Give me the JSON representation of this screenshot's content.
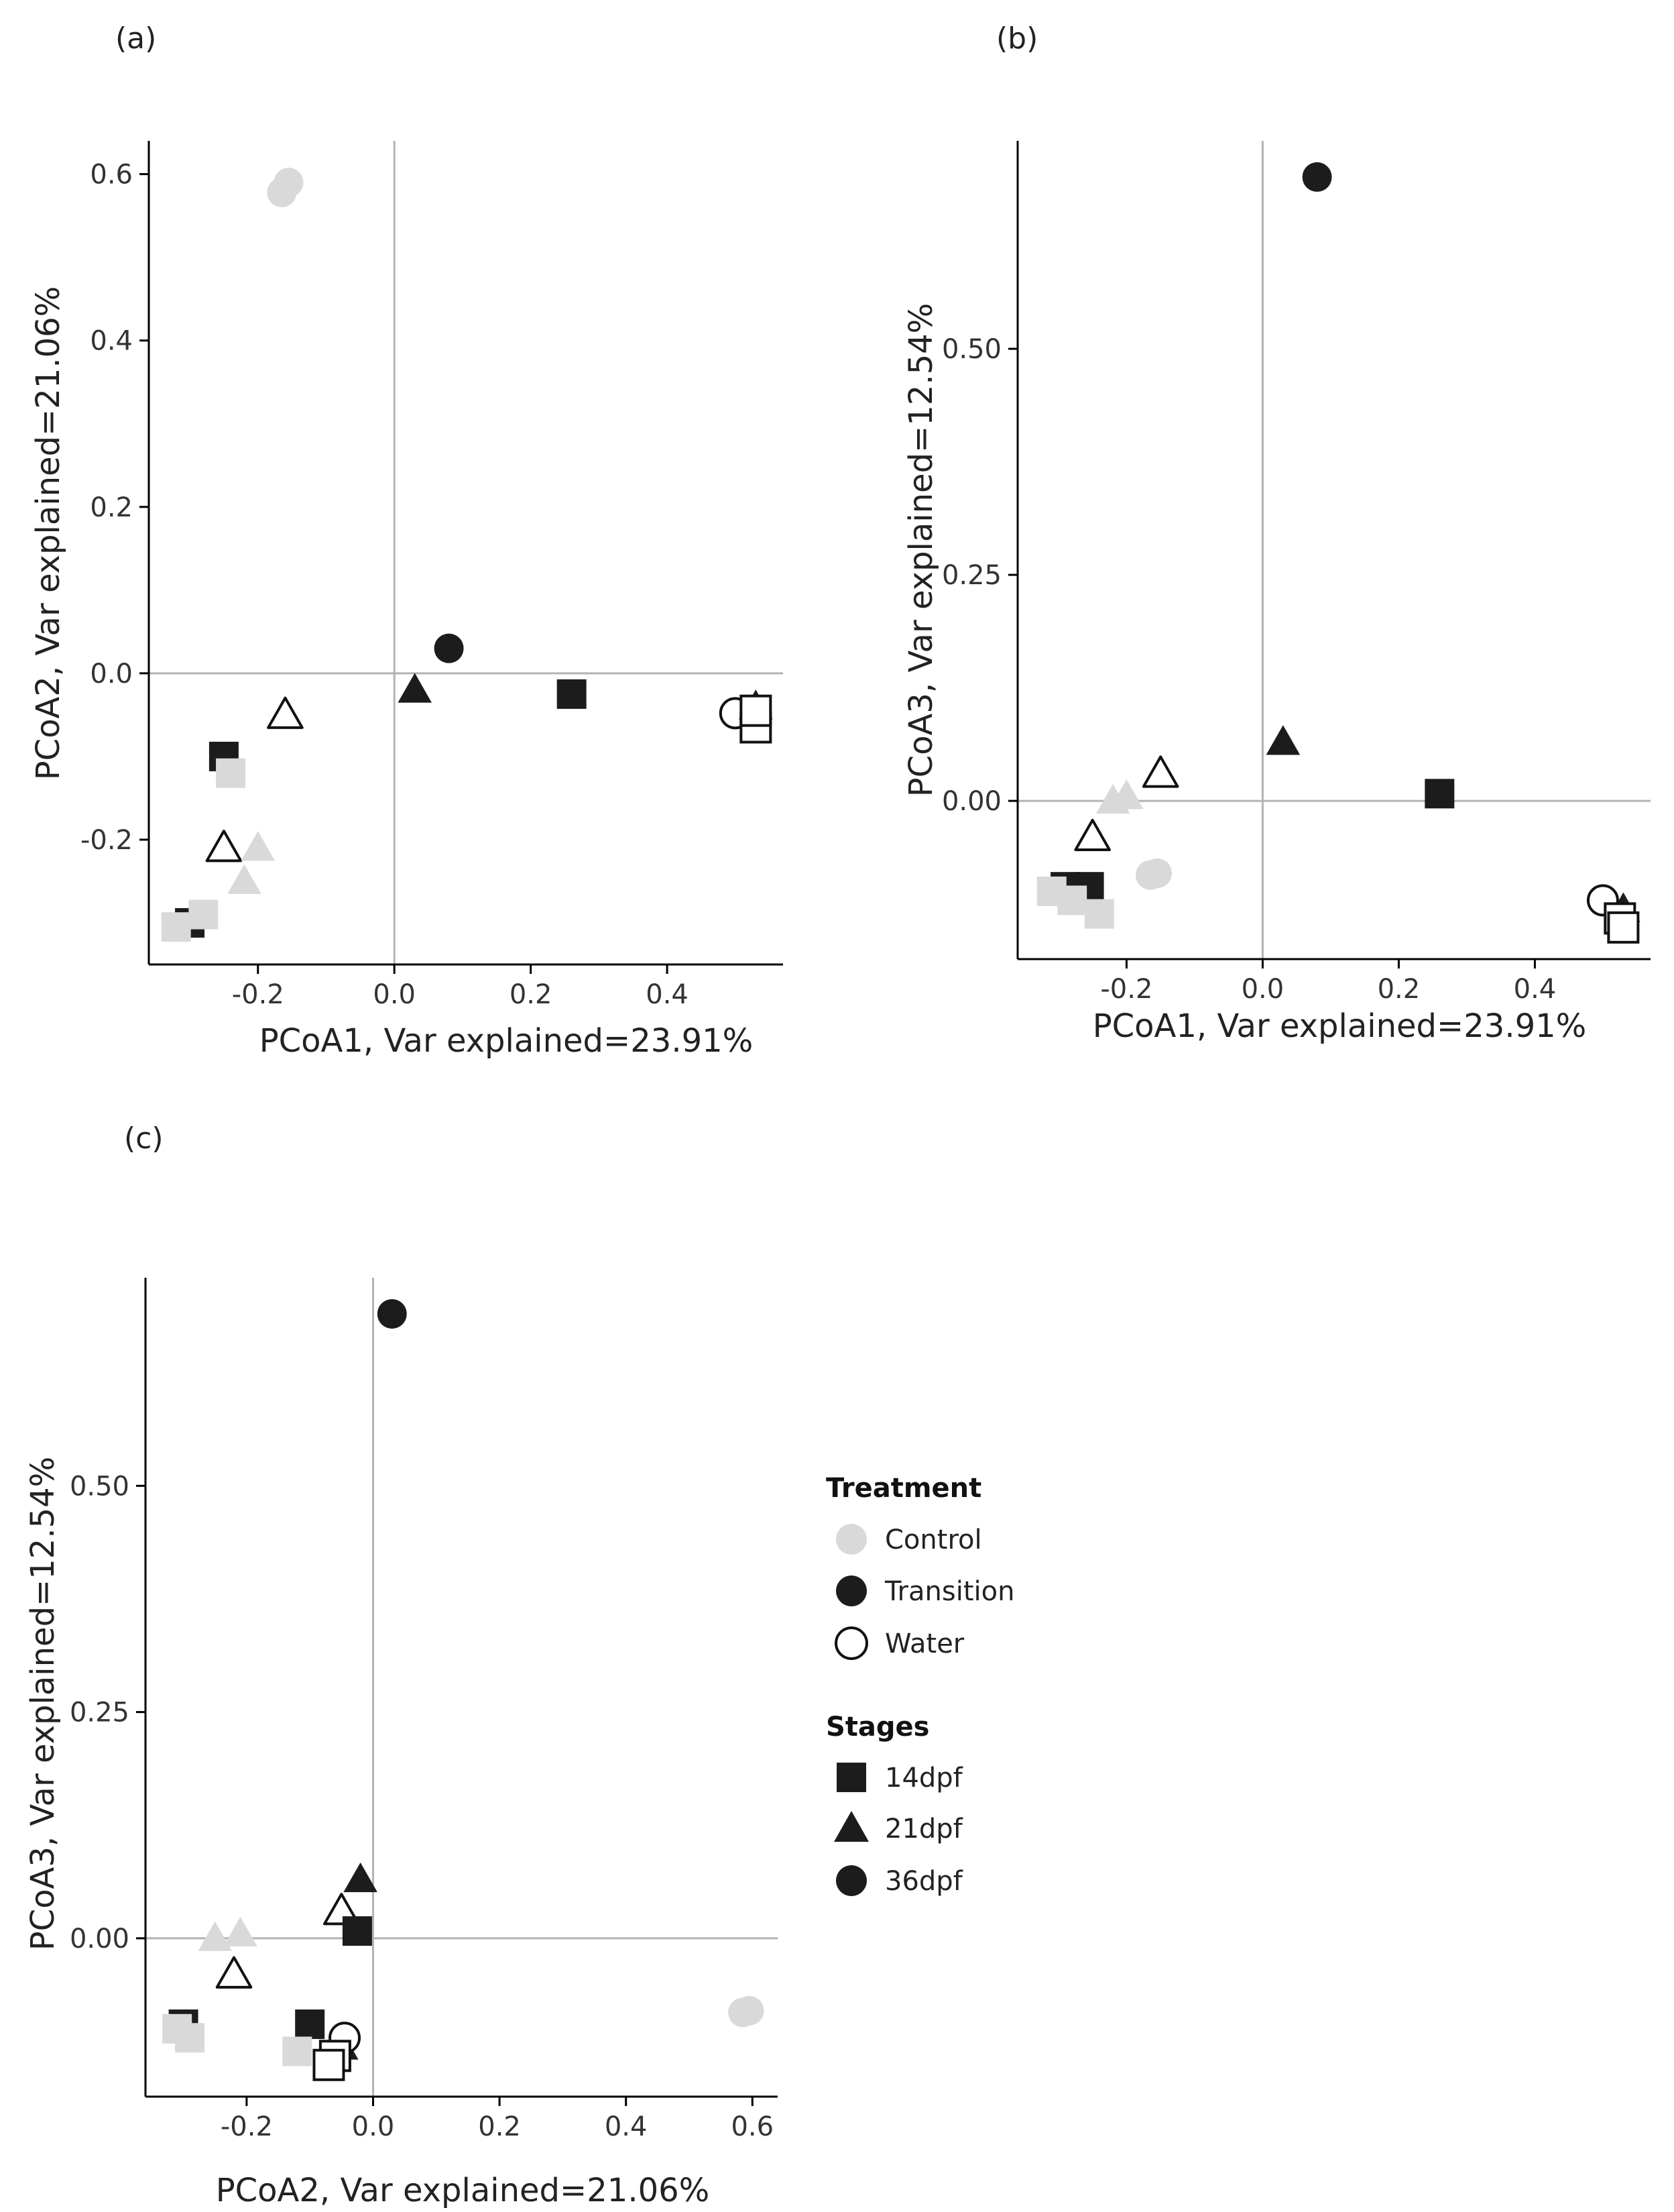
{
  "colors": {
    "control": "#d9d9d9",
    "transition": "#1c1c1c",
    "water": "#ffffff",
    "water_stroke": "#111111",
    "refline": "#b3b3b3",
    "axis": "#000000"
  },
  "legend": {
    "treatment_title": "Treatment",
    "treatment_items": [
      {
        "label": "Control",
        "key": "control"
      },
      {
        "label": "Transition",
        "key": "transition"
      },
      {
        "label": "Water",
        "key": "water"
      }
    ],
    "stages_title": "Stages",
    "stage_items": [
      {
        "label": "14dpf",
        "shape": "square"
      },
      {
        "label": "21dpf",
        "shape": "triangle"
      },
      {
        "label": "36dpf",
        "shape": "circle"
      }
    ],
    "placement": "right-of-panel-c"
  },
  "chart_data": [
    {
      "type": "scatter",
      "panel_label": "(a)",
      "xlabel": "PCoA1, Var explained=23.91%",
      "ylabel": "PCoA2, Var explained=21.06%",
      "xlim": [
        -0.36,
        0.57
      ],
      "ylim": [
        -0.35,
        0.64
      ],
      "xticks": [
        -0.2,
        0.0,
        0.2,
        0.4
      ],
      "xtick_labels": [
        "-0.2",
        "0.0",
        "0.2",
        "0.4"
      ],
      "yticks": [
        -0.2,
        0.0,
        0.2,
        0.4,
        0.6
      ],
      "ytick_labels": [
        "-0.2",
        "0.0",
        "0.2",
        "0.4",
        "0.6"
      ],
      "reference_lines": {
        "x": 0,
        "y": 0
      },
      "points": [
        {
          "x": -0.165,
          "y": 0.578,
          "treatment": "control",
          "stage": "circle"
        },
        {
          "x": -0.155,
          "y": 0.59,
          "treatment": "control",
          "stage": "circle"
        },
        {
          "x": -0.25,
          "y": -0.1,
          "treatment": "transition",
          "stage": "square"
        },
        {
          "x": -0.24,
          "y": -0.12,
          "treatment": "control",
          "stage": "square"
        },
        {
          "x": -0.16,
          "y": -0.05,
          "treatment": "water",
          "stage": "triangle"
        },
        {
          "x": -0.25,
          "y": -0.21,
          "treatment": "water",
          "stage": "triangle"
        },
        {
          "x": -0.2,
          "y": -0.21,
          "treatment": "control",
          "stage": "triangle"
        },
        {
          "x": -0.22,
          "y": -0.25,
          "treatment": "control",
          "stage": "triangle"
        },
        {
          "x": -0.3,
          "y": -0.3,
          "treatment": "transition",
          "stage": "square"
        },
        {
          "x": -0.32,
          "y": -0.305,
          "treatment": "control",
          "stage": "square"
        },
        {
          "x": -0.28,
          "y": -0.29,
          "treatment": "control",
          "stage": "square"
        },
        {
          "x": 0.03,
          "y": -0.02,
          "treatment": "transition",
          "stage": "triangle"
        },
        {
          "x": 0.08,
          "y": 0.03,
          "treatment": "transition",
          "stage": "circle"
        },
        {
          "x": 0.26,
          "y": -0.025,
          "treatment": "transition",
          "stage": "square"
        },
        {
          "x": 0.5,
          "y": -0.048,
          "treatment": "water",
          "stage": "circle"
        },
        {
          "x": 0.53,
          "y": -0.04,
          "treatment": "transition",
          "stage": "triangle"
        },
        {
          "x": 0.53,
          "y": -0.065,
          "treatment": "water",
          "stage": "square"
        },
        {
          "x": 0.53,
          "y": -0.045,
          "treatment": "water",
          "stage": "square"
        }
      ]
    },
    {
      "type": "scatter",
      "panel_label": "(b)",
      "xlabel": "PCoA1, Var explained=23.91%",
      "ylabel": "PCoA3, Var explained=12.54%",
      "xlim": [
        -0.36,
        0.57
      ],
      "ylim": [
        -0.175,
        0.73
      ],
      "xticks": [
        -0.2,
        0.0,
        0.2,
        0.4
      ],
      "xtick_labels": [
        "-0.2",
        "0.0",
        "0.2",
        "0.4"
      ],
      "yticks": [
        0.0,
        0.25,
        0.5
      ],
      "ytick_labels": [
        "0.00",
        "0.25",
        "0.50"
      ],
      "reference_lines": {
        "x": 0,
        "y": 0
      },
      "points": [
        {
          "x": 0.08,
          "y": 0.69,
          "treatment": "transition",
          "stage": "circle"
        },
        {
          "x": 0.03,
          "y": 0.065,
          "treatment": "transition",
          "stage": "triangle"
        },
        {
          "x": -0.15,
          "y": 0.03,
          "treatment": "water",
          "stage": "triangle"
        },
        {
          "x": -0.2,
          "y": 0.005,
          "treatment": "control",
          "stage": "triangle"
        },
        {
          "x": -0.22,
          "y": 0.0,
          "treatment": "control",
          "stage": "triangle"
        },
        {
          "x": -0.25,
          "y": -0.04,
          "treatment": "water",
          "stage": "triangle"
        },
        {
          "x": -0.165,
          "y": -0.082,
          "treatment": "control",
          "stage": "circle"
        },
        {
          "x": -0.155,
          "y": -0.08,
          "treatment": "control",
          "stage": "circle"
        },
        {
          "x": 0.26,
          "y": 0.008,
          "treatment": "transition",
          "stage": "square"
        },
        {
          "x": -0.29,
          "y": -0.095,
          "treatment": "transition",
          "stage": "square"
        },
        {
          "x": -0.255,
          "y": -0.095,
          "treatment": "transition",
          "stage": "square"
        },
        {
          "x": -0.31,
          "y": -0.1,
          "treatment": "control",
          "stage": "square"
        },
        {
          "x": -0.28,
          "y": -0.11,
          "treatment": "control",
          "stage": "square"
        },
        {
          "x": -0.24,
          "y": -0.125,
          "treatment": "control",
          "stage": "square"
        },
        {
          "x": 0.5,
          "y": -0.11,
          "treatment": "water",
          "stage": "circle"
        },
        {
          "x": 0.53,
          "y": -0.12,
          "treatment": "transition",
          "stage": "triangle"
        },
        {
          "x": 0.525,
          "y": -0.13,
          "treatment": "water",
          "stage": "square"
        },
        {
          "x": 0.53,
          "y": -0.14,
          "treatment": "water",
          "stage": "square"
        }
      ]
    },
    {
      "type": "scatter",
      "panel_label": "(c)",
      "xlabel": "PCoA2, Var explained=21.06%",
      "ylabel": "PCoA3, Var explained=12.54%",
      "xlim": [
        -0.36,
        0.64
      ],
      "ylim": [
        -0.175,
        0.73
      ],
      "xticks": [
        -0.2,
        0.0,
        0.2,
        0.4,
        0.6
      ],
      "xtick_labels": [
        "-0.2",
        "0.0",
        "0.2",
        "0.4",
        "0.6"
      ],
      "yticks": [
        0.0,
        0.25,
        0.5
      ],
      "ytick_labels": [
        "0.00",
        "0.25",
        "0.50"
      ],
      "reference_lines": {
        "x": 0,
        "y": 0
      },
      "points": [
        {
          "x": 0.03,
          "y": 0.69,
          "treatment": "transition",
          "stage": "circle"
        },
        {
          "x": -0.02,
          "y": 0.065,
          "treatment": "transition",
          "stage": "triangle"
        },
        {
          "x": -0.05,
          "y": 0.03,
          "treatment": "water",
          "stage": "triangle"
        },
        {
          "x": -0.21,
          "y": 0.005,
          "treatment": "control",
          "stage": "triangle"
        },
        {
          "x": -0.25,
          "y": 0.0,
          "treatment": "control",
          "stage": "triangle"
        },
        {
          "x": -0.22,
          "y": -0.04,
          "treatment": "water",
          "stage": "triangle"
        },
        {
          "x": -0.025,
          "y": 0.008,
          "treatment": "transition",
          "stage": "square"
        },
        {
          "x": 0.585,
          "y": -0.082,
          "treatment": "control",
          "stage": "circle"
        },
        {
          "x": 0.595,
          "y": -0.08,
          "treatment": "control",
          "stage": "circle"
        },
        {
          "x": -0.3,
          "y": -0.095,
          "treatment": "transition",
          "stage": "square"
        },
        {
          "x": -0.31,
          "y": -0.1,
          "treatment": "control",
          "stage": "square"
        },
        {
          "x": -0.29,
          "y": -0.11,
          "treatment": "control",
          "stage": "square"
        },
        {
          "x": -0.1,
          "y": -0.095,
          "treatment": "transition",
          "stage": "square"
        },
        {
          "x": -0.12,
          "y": -0.125,
          "treatment": "control",
          "stage": "square"
        },
        {
          "x": -0.05,
          "y": -0.12,
          "treatment": "transition",
          "stage": "triangle"
        },
        {
          "x": -0.045,
          "y": -0.11,
          "treatment": "water",
          "stage": "circle"
        },
        {
          "x": -0.06,
          "y": -0.13,
          "treatment": "water",
          "stage": "square"
        },
        {
          "x": -0.07,
          "y": -0.14,
          "treatment": "water",
          "stage": "square"
        }
      ]
    }
  ]
}
